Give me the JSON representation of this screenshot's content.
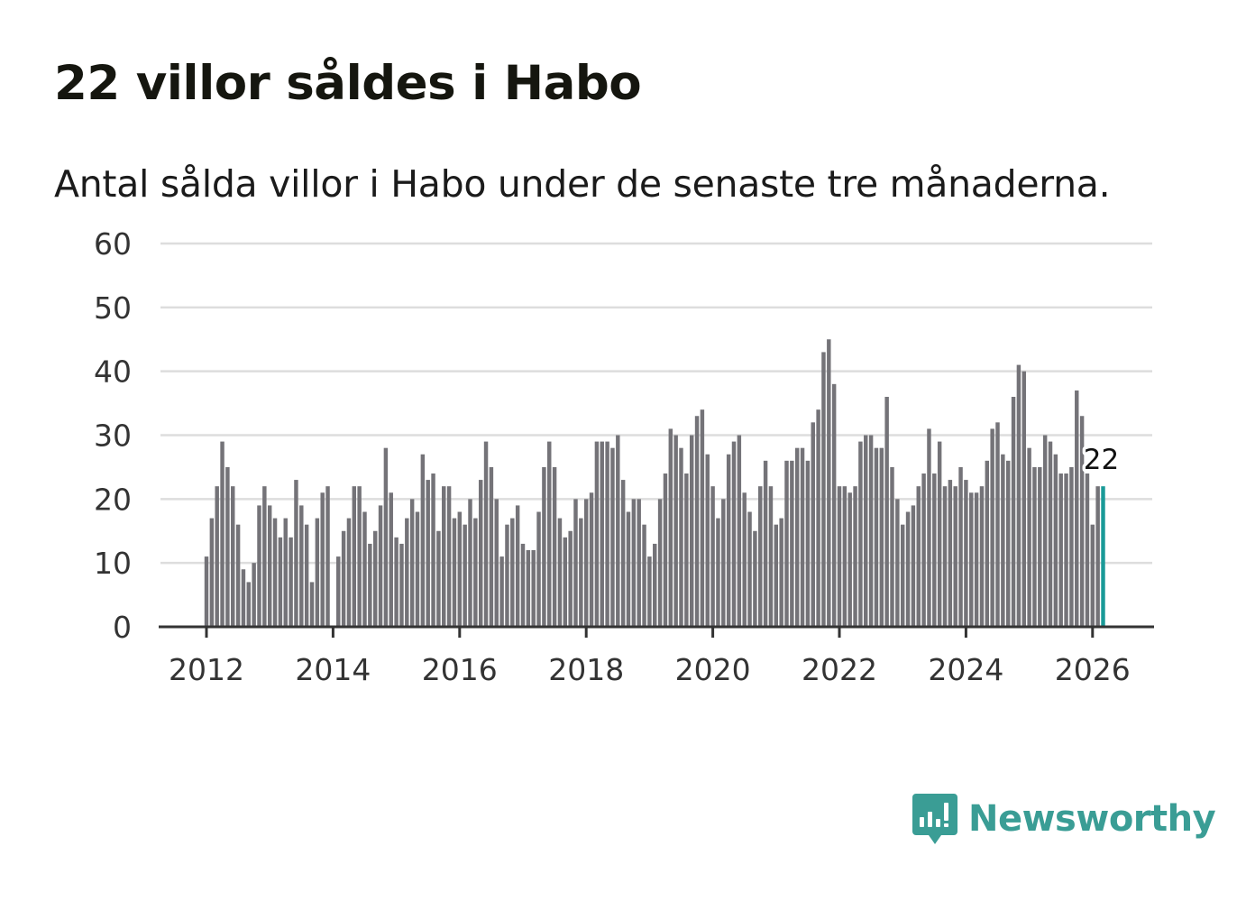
{
  "title": "22 villor såldes i Habo",
  "subtitle": "Antal sålda villor i Habo under de senaste tre månaderna.",
  "brand": {
    "name": "Newsworthy",
    "color": "#3a9d95",
    "icon": "newsworthy-logo-icon"
  },
  "colors": {
    "bar": "#747378",
    "highlight": "#1a9a98",
    "grid": "#dddddd",
    "axis": "#333333"
  },
  "chart_data": {
    "type": "bar",
    "title": "22 villor såldes i Habo",
    "subtitle": "Antal sålda villor i Habo under de senaste tre månaderna.",
    "x_start": "2012-01",
    "frequency": "monthly",
    "x_ticks": [
      "2012",
      "2014",
      "2016",
      "2018",
      "2020",
      "2022",
      "2024",
      "2026"
    ],
    "y_ticks": [
      "0",
      "10",
      "20",
      "30",
      "40",
      "50",
      "60"
    ],
    "ylim": [
      0,
      60
    ],
    "grid": true,
    "highlight_last": true,
    "end_label": "22",
    "values": [
      11,
      17,
      22,
      29,
      25,
      22,
      16,
      9,
      7,
      10,
      19,
      22,
      19,
      17,
      14,
      17,
      14,
      23,
      19,
      16,
      7,
      17,
      21,
      22,
      0,
      11,
      15,
      17,
      22,
      22,
      18,
      13,
      15,
      19,
      28,
      21,
      14,
      13,
      17,
      20,
      18,
      27,
      23,
      24,
      15,
      22,
      22,
      17,
      18,
      16,
      20,
      17,
      23,
      29,
      25,
      20,
      11,
      16,
      17,
      19,
      13,
      12,
      12,
      18,
      25,
      29,
      25,
      17,
      14,
      15,
      20,
      17,
      20,
      21,
      29,
      29,
      29,
      28,
      30,
      23,
      18,
      20,
      20,
      16,
      11,
      13,
      20,
      24,
      31,
      30,
      28,
      24,
      30,
      33,
      34,
      27,
      22,
      17,
      20,
      27,
      29,
      30,
      21,
      18,
      15,
      22,
      26,
      22,
      16,
      17,
      26,
      26,
      28,
      28,
      26,
      32,
      34,
      43,
      45,
      38,
      22,
      22,
      21,
      22,
      29,
      30,
      30,
      28,
      28,
      36,
      25,
      20,
      16,
      18,
      19,
      22,
      24,
      31,
      24,
      29,
      22,
      23,
      22,
      25,
      23,
      21,
      21,
      22,
      26,
      31,
      32,
      27,
      26,
      36,
      41,
      40,
      28,
      25,
      25,
      30,
      29,
      27,
      24,
      24,
      25,
      37,
      33,
      24,
      16,
      22,
      22
    ]
  }
}
